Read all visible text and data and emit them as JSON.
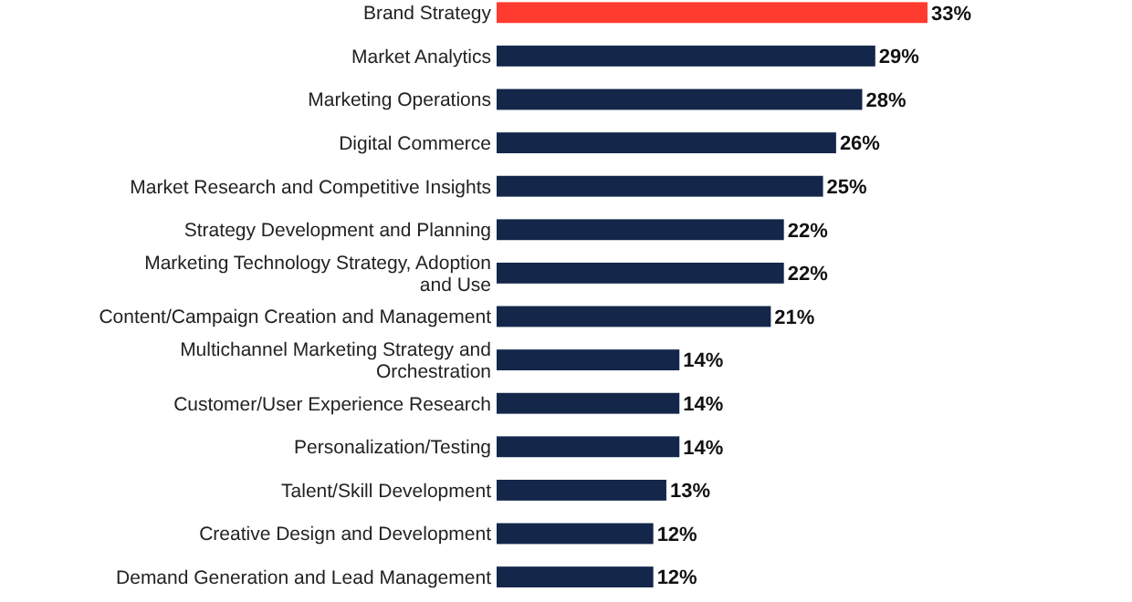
{
  "chart_data": {
    "type": "bar",
    "orientation": "horizontal",
    "categories": [
      "Brand Strategy",
      "Market Analytics",
      "Marketing Operations",
      "Digital Commerce",
      "Market Research and Competitive Insights",
      "Strategy Development and Planning",
      "Marketing Technology Strategy, Adoption and Use",
      "Content/Campaign Creation and Management",
      "Multichannel Marketing Strategy and Orchestration",
      "Customer/User Experience Research",
      "Personalization/Testing",
      "Talent/Skill Development",
      "Creative Design and Development",
      "Demand Generation and Lead Management"
    ],
    "values": [
      33,
      29,
      28,
      26,
      25,
      22,
      22,
      21,
      14,
      14,
      14,
      13,
      12,
      12
    ],
    "value_labels": [
      "33%",
      "29%",
      "28%",
      "26%",
      "25%",
      "22%",
      "22%",
      "21%",
      "14%",
      "14%",
      "14%",
      "13%",
      "12%",
      "12%"
    ],
    "colors": [
      "#ff3b2f",
      "#14264a",
      "#14264a",
      "#14264a",
      "#14264a",
      "#14264a",
      "#14264a",
      "#14264a",
      "#14264a",
      "#14264a",
      "#14264a",
      "#14264a",
      "#14264a",
      "#14264a"
    ]
  }
}
